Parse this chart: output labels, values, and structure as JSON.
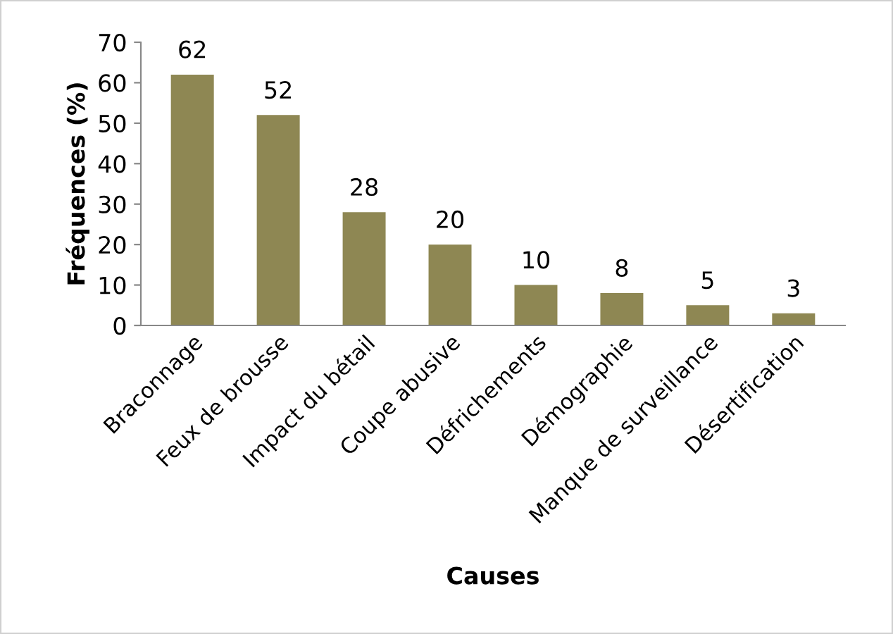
{
  "chart_data": {
    "type": "bar",
    "xlabel": "Causes",
    "ylabel": "Fréquences (%)",
    "categories": [
      "Braconnage",
      "Feux de brousse",
      "Impact du bétail",
      "Coupe abusive",
      "Défrichements",
      "Démographie",
      "Manque de surveillance",
      "Désertification"
    ],
    "values": [
      62,
      52,
      28,
      20,
      10,
      8,
      5,
      3
    ],
    "color": "#8e8753",
    "data_labels": true,
    "ylim": [
      0,
      70
    ],
    "yticks": [
      0,
      10,
      20,
      30,
      40,
      50,
      60,
      70
    ],
    "grid": false,
    "legend": false
  }
}
